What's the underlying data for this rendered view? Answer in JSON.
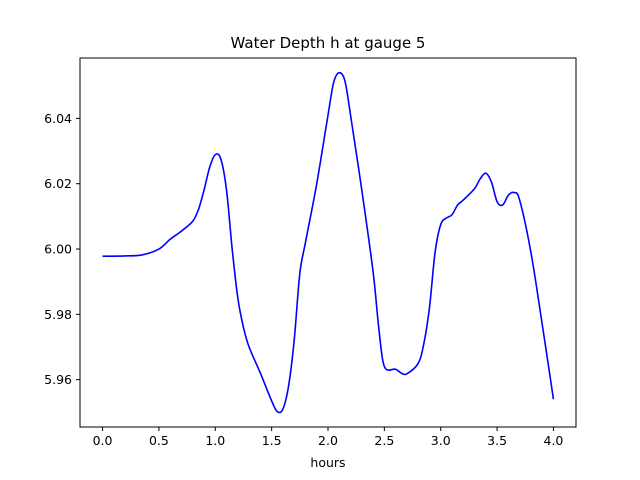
{
  "chart_data": {
    "type": "line",
    "title": "Water Depth h at gauge 5",
    "xlabel": "hours",
    "ylabel": "",
    "xlim": [
      -0.2,
      4.2
    ],
    "ylim": [
      5.9455,
      6.0585
    ],
    "xticks": [
      0.0,
      0.5,
      1.0,
      1.5,
      2.0,
      2.5,
      3.0,
      3.5,
      4.0
    ],
    "xtick_labels": [
      "0.0",
      "0.5",
      "1.0",
      "1.5",
      "2.0",
      "2.5",
      "3.0",
      "3.5",
      "4.0"
    ],
    "yticks": [
      5.96,
      5.98,
      6.0,
      6.02,
      6.04
    ],
    "ytick_labels": [
      "5.96",
      "5.98",
      "6.00",
      "6.02",
      "6.04"
    ],
    "grid": false,
    "colors": {
      "line": "#0000ff",
      "axes": "#000000",
      "background": "#ffffff"
    },
    "series": [
      {
        "x": [
          0.0,
          0.2,
          0.35,
          0.5,
          0.6,
          0.7,
          0.8,
          0.85,
          0.9,
          0.95,
          1.0,
          1.05,
          1.1,
          1.15,
          1.2,
          1.25,
          1.3,
          1.4,
          1.5,
          1.55,
          1.6,
          1.65,
          1.7,
          1.75,
          1.8,
          1.9,
          2.0,
          2.05,
          2.1,
          2.15,
          2.2,
          2.3,
          2.4,
          2.45,
          2.5,
          2.6,
          2.65,
          2.7,
          2.8,
          2.85,
          2.9,
          2.95,
          3.0,
          3.05,
          3.1,
          3.15,
          3.2,
          3.3,
          3.35,
          3.4,
          3.45,
          3.5,
          3.55,
          3.6,
          3.65,
          3.7,
          3.8,
          3.9,
          4.0
        ],
        "y": [
          5.9978,
          5.9979,
          5.9982,
          6.0,
          6.003,
          6.0055,
          6.0085,
          6.012,
          6.018,
          6.025,
          6.0289,
          6.0275,
          6.018,
          6.0,
          5.985,
          5.976,
          5.97,
          5.962,
          5.9535,
          5.9502,
          5.951,
          5.958,
          5.972,
          5.9925,
          6.002,
          6.02,
          6.041,
          6.051,
          6.054,
          6.0515,
          6.041,
          6.018,
          5.993,
          5.976,
          5.964,
          5.9632,
          5.962,
          5.9618,
          5.965,
          5.971,
          5.982,
          5.999,
          6.0075,
          6.0095,
          6.0105,
          6.0135,
          6.015,
          6.0185,
          6.0215,
          6.0232,
          6.0205,
          6.0145,
          6.0135,
          6.0165,
          6.0173,
          6.015,
          5.999,
          5.977,
          5.954
        ]
      }
    ]
  }
}
